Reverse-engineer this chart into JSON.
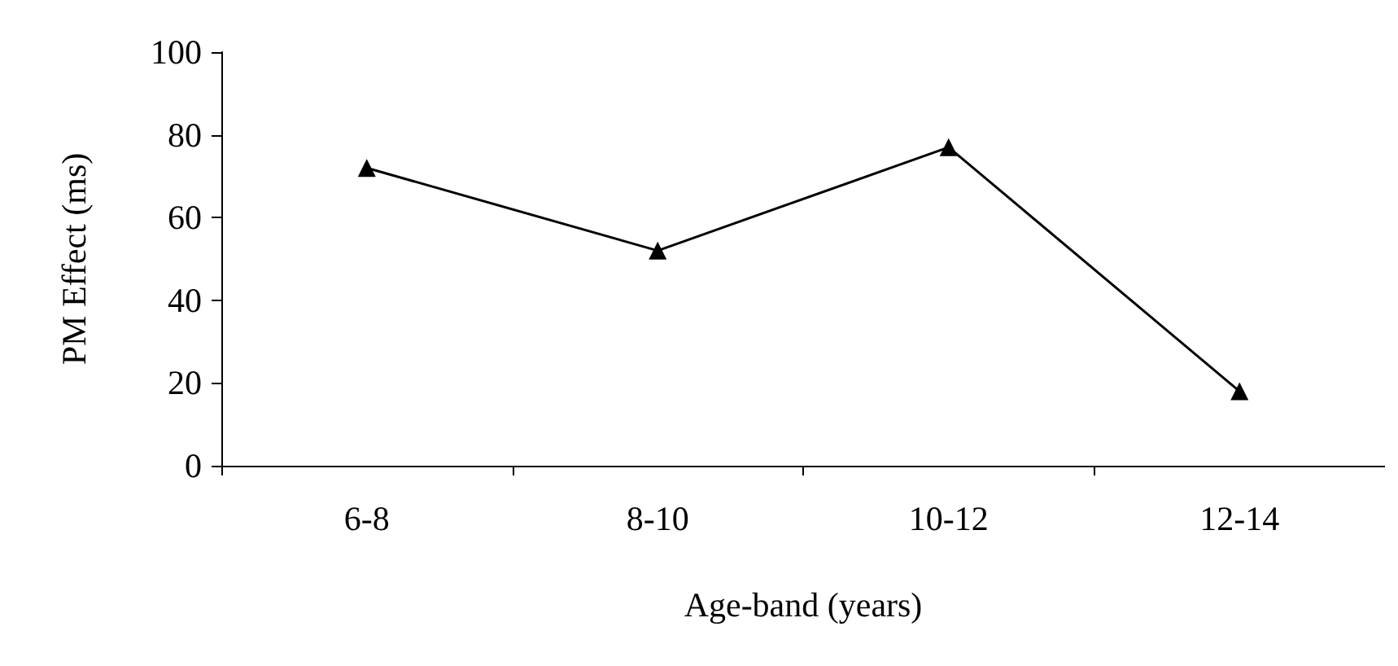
{
  "chart_data": {
    "type": "line",
    "xlabel": "Age-band (years)",
    "ylabel": "PM Effect (ms)",
    "categories": [
      "6-8",
      "8-10",
      "10-12",
      "12-14"
    ],
    "series": [
      {
        "color": "#000000",
        "values": [
          72,
          52,
          77,
          18
        ]
      }
    ],
    "ylim": [
      0,
      100
    ],
    "yticks": [
      0,
      20,
      40,
      60,
      80,
      100
    ],
    "grid": false,
    "marker": "triangle",
    "line_style": "solid"
  }
}
